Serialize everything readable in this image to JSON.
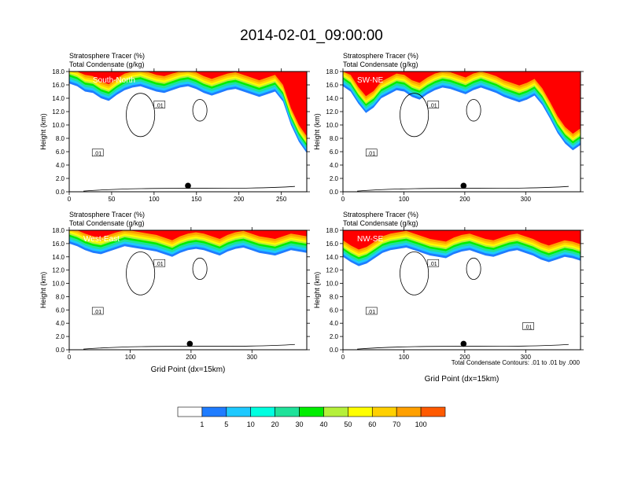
{
  "title": "2014-02-01_09:00:00",
  "colors": {
    "levels": [
      "#ffffff",
      "#1f7cff",
      "#1ec9ff",
      "#00ffe0",
      "#1fe29a",
      "#00ee00",
      "#b5f03a",
      "#ffff00",
      "#ffd000",
      "#ffa000",
      "#ff5a00",
      "#ff0000"
    ]
  },
  "colorbar": {
    "labels": [
      "1",
      "5",
      "10",
      "20",
      "30",
      "40",
      "50",
      "60",
      "70",
      "100"
    ]
  },
  "footnote": "Total Condensate Contours: .01 to .01 by .000",
  "chart_data": [
    {
      "type": "heatmap",
      "title_line1": "Stratosphere Tracer   (%)",
      "title_line2": "Total Condensate   (g/kg)",
      "section_label": "South-North",
      "ylabel": "Height (km)",
      "xlabel": "",
      "ylim": [
        0,
        18
      ],
      "xlim": [
        0,
        280
      ],
      "xticks": [
        0,
        50,
        100,
        150,
        200,
        250
      ],
      "yticks": [
        "0.0",
        "2.0",
        "4.0",
        "6.0",
        "8.0",
        "10.0",
        "12.0",
        "14.0",
        "16.0",
        "18.0"
      ],
      "tracer_top_km": [
        16.2,
        15.8,
        15.0,
        14.8,
        14.0,
        13.6,
        14.5,
        15.2,
        15.6,
        15.8,
        15.4,
        15.0,
        14.8,
        15.2,
        15.6,
        15.8,
        15.4,
        14.8,
        14.4,
        14.8,
        15.2,
        15.4,
        15.0,
        14.6,
        14.2,
        14.6,
        15.0,
        13.5,
        10.0,
        7.5,
        5.8
      ],
      "contour_labels": [
        ".01",
        ".01"
      ],
      "marker_x": 140
    },
    {
      "type": "heatmap",
      "title_line1": "Stratosphere Tracer   (%)",
      "title_line2": "Total Condensate   (g/kg)",
      "section_label": "SW-NE",
      "ylabel": "Height (km)",
      "xlabel": "",
      "ylim": [
        0,
        18
      ],
      "xlim": [
        0,
        390
      ],
      "xticks": [
        0,
        100,
        200,
        300
      ],
      "yticks": [
        "0.0",
        "2.0",
        "4.0",
        "6.0",
        "8.0",
        "10.0",
        "12.0",
        "14.0",
        "16.0",
        "18.0"
      ],
      "tracer_top_km": [
        15.8,
        15.0,
        13.2,
        11.8,
        12.6,
        14.0,
        14.6,
        15.2,
        15.0,
        14.2,
        13.8,
        14.6,
        15.2,
        15.6,
        15.4,
        15.0,
        14.6,
        15.2,
        15.6,
        15.2,
        14.8,
        14.2,
        13.8,
        13.4,
        13.8,
        14.4,
        13.0,
        11.0,
        8.8,
        7.2,
        6.2,
        7.0
      ],
      "contour_labels": [
        ".01",
        ".01"
      ],
      "marker_x": 198
    },
    {
      "type": "heatmap",
      "title_line1": "Stratosphere Tracer   (%)",
      "title_line2": "Total Condensate   (g/kg)",
      "section_label": "West-East",
      "ylabel": "Height (km)",
      "xlabel": "Grid Point (dx=15km)",
      "ylim": [
        0,
        18
      ],
      "xlim": [
        0,
        390
      ],
      "xticks": [
        0,
        100,
        200,
        300
      ],
      "yticks": [
        "0.0",
        "2.0",
        "4.0",
        "6.0",
        "8.0",
        "10.0",
        "12.0",
        "14.0",
        "16.0",
        "18.0"
      ],
      "tracer_top_km": [
        16.0,
        15.6,
        15.0,
        14.6,
        14.4,
        14.8,
        15.2,
        15.6,
        15.4,
        15.2,
        15.0,
        14.8,
        14.4,
        14.0,
        14.6,
        15.0,
        15.2,
        15.0,
        14.6,
        14.2,
        14.8,
        15.2,
        15.4,
        15.0,
        14.6,
        14.4,
        14.2,
        14.6,
        15.0,
        14.8,
        14.6
      ],
      "contour_labels": [
        ".01",
        ".01"
      ],
      "marker_x": 198
    },
    {
      "type": "heatmap",
      "title_line1": "Stratosphere Tracer   (%)",
      "title_line2": "Total Condensate   (g/kg)",
      "section_label": "NW-SE",
      "ylabel": "Height (km)",
      "xlabel": "Grid Point (dx=15km)",
      "ylim": [
        0,
        18
      ],
      "xlim": [
        0,
        390
      ],
      "xticks": [
        0,
        100,
        200,
        300
      ],
      "yticks": [
        "0.0",
        "2.0",
        "4.0",
        "6.0",
        "8.0",
        "10.0",
        "12.0",
        "14.0",
        "16.0",
        "18.0"
      ],
      "tracer_top_km": [
        14.0,
        13.2,
        12.6,
        13.0,
        13.8,
        14.6,
        15.0,
        15.2,
        15.4,
        15.0,
        14.6,
        14.2,
        14.0,
        13.8,
        14.4,
        14.8,
        15.0,
        14.6,
        14.2,
        14.0,
        14.4,
        14.8,
        15.0,
        14.6,
        14.2,
        13.6,
        13.2,
        13.6,
        14.0,
        13.8,
        13.4
      ],
      "contour_labels": [
        ".01",
        ".01",
        ".01"
      ],
      "marker_x": 198
    }
  ]
}
